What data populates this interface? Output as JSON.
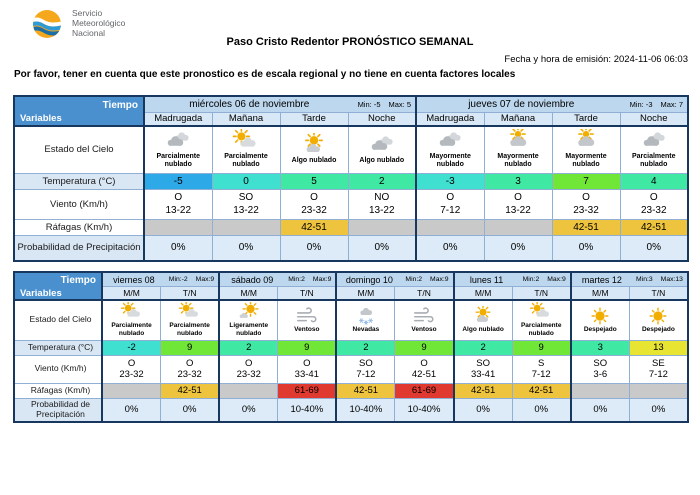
{
  "logo": {
    "line1": "Servicio",
    "line2": "Meteorológico",
    "line3": "Nacional"
  },
  "title": "Paso Cristo Redentor PRONÓSTICO SEMANAL",
  "emission": "Fecha y hora de emisión: 2024-11-06 06:03",
  "disclaimer": "Por favor, tener en cuenta que este pronostico es de escala regional y no tiene en cuenta factores locales",
  "labels": {
    "tiempo": "Tiempo",
    "variables": "Variables",
    "estado": "Estado del Cielo",
    "temperatura": "Temperatura (°C)",
    "viento": "Viento (Km/h)",
    "rafagas": "Ráfagas (Km/h)",
    "precipitacion": "Probabilidad de Precipitación"
  },
  "colors": {
    "corner_blue": "#4a90ce",
    "day_header_blue": "#bdd7ee",
    "period_header_blue": "#d9e8f7",
    "precip_cell_blue": "#dcebf7",
    "gust_empty_gray": "#c9c9c9",
    "gust_yellow": "#eec43e",
    "gust_red": "#e0392f",
    "temp_blue": "#2da9e8",
    "temp_turquoise": "#3fe0d0",
    "temp_spring_green": "#3fe8a3",
    "temp_lime": "#70e636",
    "temp_yellow": "#e8e432"
  },
  "table1": {
    "days": [
      {
        "name": "miércoles 06 de noviembre",
        "min": "Min: -5",
        "max": "Max: 5",
        "periods": [
          "Madrugada",
          "Mañana",
          "Tarde",
          "Noche"
        ]
      },
      {
        "name": "jueves 07 de noviembre",
        "min": "Min: -3",
        "max": "Max: 7",
        "periods": [
          "Madrugada",
          "Mañana",
          "Tarde",
          "Noche"
        ]
      }
    ],
    "cells": [
      {
        "icon": "clouds-icon",
        "sky": "Parcialmente nublado",
        "temp": "-5",
        "tempColor": "#2da9e8",
        "windDir": "O",
        "windSpeed": "13-22",
        "gust": "",
        "gustColor": "#c9c9c9",
        "precip": "0%"
      },
      {
        "icon": "sun-behind-cloud-icon",
        "sky": "Parcialmente nublado",
        "temp": "0",
        "tempColor": "#3fe0d0",
        "windDir": "SO",
        "windSpeed": "13-22",
        "gust": "",
        "gustColor": "#c9c9c9",
        "precip": "0%"
      },
      {
        "icon": "sun-above-cloud-icon",
        "sky": "Algo nublado",
        "temp": "5",
        "tempColor": "#3fe8a3",
        "windDir": "O",
        "windSpeed": "23-32",
        "gust": "42-51",
        "gustColor": "#eec43e",
        "precip": "0%"
      },
      {
        "icon": "clouds-icon",
        "sky": "Algo nublado",
        "temp": "2",
        "tempColor": "#3fe8a3",
        "windDir": "NO",
        "windSpeed": "13-22",
        "gust": "",
        "gustColor": "#c9c9c9",
        "precip": "0%"
      },
      {
        "icon": "clouds-icon",
        "sky": "Mayormente nublado",
        "temp": "-3",
        "tempColor": "#3fe0d0",
        "windDir": "O",
        "windSpeed": "7-12",
        "gust": "",
        "gustColor": "#c9c9c9",
        "precip": "0%"
      },
      {
        "icon": "cloud-sun-peek-icon",
        "sky": "Mayormente nublado",
        "temp": "3",
        "tempColor": "#3fe8a3",
        "windDir": "O",
        "windSpeed": "13-22",
        "gust": "",
        "gustColor": "#c9c9c9",
        "precip": "0%"
      },
      {
        "icon": "cloud-sun-peek-icon",
        "sky": "Mayormente nublado",
        "temp": "7",
        "tempColor": "#70e636",
        "windDir": "O",
        "windSpeed": "23-32",
        "gust": "42-51",
        "gustColor": "#eec43e",
        "precip": "0%"
      },
      {
        "icon": "clouds-icon",
        "sky": "Parcialmente nublado",
        "temp": "4",
        "tempColor": "#3fe8a3",
        "windDir": "O",
        "windSpeed": "23-32",
        "gust": "42-51",
        "gustColor": "#eec43e",
        "precip": "0%"
      }
    ]
  },
  "table2": {
    "days": [
      {
        "name": "viernes 08",
        "min": "Min:-2",
        "max": "Max:9",
        "periods": [
          "M/M",
          "T/N"
        ]
      },
      {
        "name": "sábado 09",
        "min": "Min:2",
        "max": "Max:9",
        "periods": [
          "M/M",
          "T/N"
        ]
      },
      {
        "name": "domingo 10",
        "min": "Min:2",
        "max": "Max:9",
        "periods": [
          "M/M",
          "T/N"
        ]
      },
      {
        "name": "lunes 11",
        "min": "Min:2",
        "max": "Max:9",
        "periods": [
          "M/M",
          "T/N"
        ]
      },
      {
        "name": "martes 12",
        "min": "Min:3",
        "max": "Max:13",
        "periods": [
          "M/M",
          "T/N"
        ]
      }
    ],
    "cells": [
      {
        "icon": "sun-behind-cloud-icon",
        "sky": "Parcialmente nublado",
        "temp": "-2",
        "tempColor": "#3fe0d0",
        "windDir": "O",
        "windSpeed": "23-32",
        "gust": "",
        "gustColor": "#c9c9c9",
        "precip": "0%"
      },
      {
        "icon": "sun-behind-cloud-icon",
        "sky": "Parcialmente nublado",
        "temp": "9",
        "tempColor": "#70e636",
        "windDir": "O",
        "windSpeed": "23-32",
        "gust": "42-51",
        "gustColor": "#eec43e",
        "precip": "0%"
      },
      {
        "icon": "sun-small-cloud-icon",
        "sky": "Ligeramente nublado",
        "temp": "2",
        "tempColor": "#3fe8a3",
        "windDir": "O",
        "windSpeed": "23-32",
        "gust": "",
        "gustColor": "#c9c9c9",
        "precip": "0%"
      },
      {
        "icon": "wind-icon",
        "sky": "Ventoso",
        "temp": "9",
        "tempColor": "#70e636",
        "windDir": "O",
        "windSpeed": "33-41",
        "gust": "61-69",
        "gustColor": "#e0392f",
        "precip": "10-40%"
      },
      {
        "icon": "snow-cloud-icon",
        "sky": "Nevadas",
        "temp": "2",
        "tempColor": "#3fe8a3",
        "windDir": "SO",
        "windSpeed": "7-12",
        "gust": "42-51",
        "gustColor": "#eec43e",
        "precip": "10-40%"
      },
      {
        "icon": "wind-icon",
        "sky": "Ventoso",
        "temp": "9",
        "tempColor": "#70e636",
        "windDir": "O",
        "windSpeed": "42-51",
        "gust": "61-69",
        "gustColor": "#e0392f",
        "precip": "10-40%"
      },
      {
        "icon": "sun-above-cloud-icon",
        "sky": "Algo nublado",
        "temp": "2",
        "tempColor": "#3fe8a3",
        "windDir": "SO",
        "windSpeed": "33-41",
        "gust": "42-51",
        "gustColor": "#eec43e",
        "precip": "0%"
      },
      {
        "icon": "sun-behind-cloud-icon",
        "sky": "Parcialmente nublado",
        "temp": "9",
        "tempColor": "#70e636",
        "windDir": "S",
        "windSpeed": "7-12",
        "gust": "42-51",
        "gustColor": "#eec43e",
        "precip": "0%"
      },
      {
        "icon": "sun-icon",
        "sky": "Despejado",
        "temp": "3",
        "tempColor": "#3fe8a3",
        "windDir": "SO",
        "windSpeed": "3-6",
        "gust": "",
        "gustColor": "#c9c9c9",
        "precip": "0%"
      },
      {
        "icon": "sun-icon",
        "sky": "Despejado",
        "temp": "13",
        "tempColor": "#e8e432",
        "windDir": "SE",
        "windSpeed": "7-12",
        "gust": "",
        "gustColor": "#c9c9c9",
        "precip": "0%"
      }
    ]
  }
}
